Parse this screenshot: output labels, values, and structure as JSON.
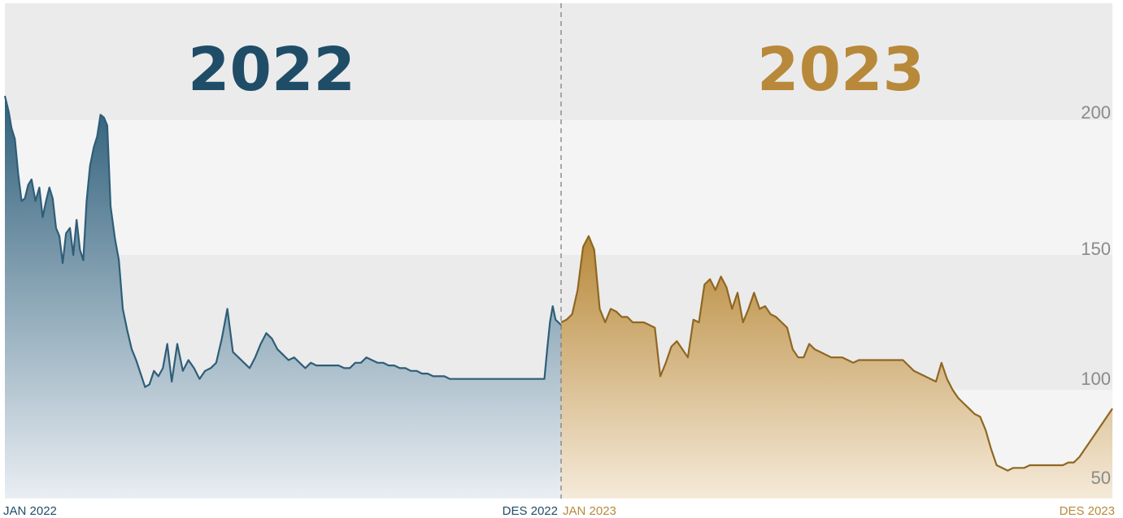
{
  "chart_data": {
    "type": "area",
    "title": "",
    "xlabel": "",
    "ylabel": "",
    "ylim": [
      45,
      215
    ],
    "y_ticks": [
      "200",
      "150",
      "100",
      "50"
    ],
    "grid": "alternating horizontal bands",
    "colors": {
      "series_2022_line": "#2e5e78",
      "series_2022_fill_top": "#2f5f7a",
      "series_2022_fill_bottom": "#e9eef3",
      "series_2023_line": "#8f6722",
      "series_2023_fill_top": "#b8893a",
      "series_2023_fill_bottom": "#f5ead9",
      "title_2022": "#1f4d68",
      "title_2023": "#b8893a",
      "band_dark": "#ebebeb",
      "band_light": "#f4f4f4"
    },
    "panels": [
      {
        "year_label": "2022",
        "x_start_label": "JAN 2022",
        "x_end_label": "DES 2022",
        "series": [
          {
            "x": [
              0,
              0.007,
              0.012,
              0.018,
              0.024,
              0.03,
              0.036,
              0.042,
              0.048,
              0.055,
              0.062,
              0.068,
              0.074,
              0.08,
              0.086,
              0.092,
              0.098,
              0.104,
              0.11,
              0.117,
              0.123,
              0.129,
              0.135,
              0.141,
              0.147,
              0.153,
              0.16,
              0.166,
              0.172,
              0.178,
              0.184,
              0.19,
              0.198,
              0.205,
              0.212,
              0.22,
              0.228,
              0.236,
              0.244,
              0.252,
              0.26,
              0.268,
              0.276,
              0.284,
              0.292,
              0.3,
              0.31,
              0.32,
              0.33,
              0.34,
              0.35,
              0.36,
              0.37,
              0.38,
              0.39,
              0.4,
              0.41,
              0.42,
              0.43,
              0.44,
              0.45,
              0.46,
              0.47,
              0.48,
              0.49,
              0.5,
              0.51,
              0.52,
              0.53,
              0.54,
              0.55,
              0.56,
              0.57,
              0.58,
              0.59,
              0.6,
              0.61,
              0.62,
              0.63,
              0.64,
              0.65,
              0.66,
              0.67,
              0.68,
              0.69,
              0.7,
              0.71,
              0.72,
              0.73,
              0.74,
              0.75,
              0.76,
              0.77,
              0.78,
              0.79,
              0.8,
              0.81,
              0.82,
              0.83,
              0.84,
              0.85,
              0.86,
              0.87,
              0.88,
              0.89,
              0.9,
              0.91,
              0.92,
              0.93,
              0.94,
              0.95,
              0.96,
              0.97,
              0.975,
              0.98,
              0.985,
              0.99,
              0.995,
              1
            ],
            "values": [
              209,
              203,
              197,
              193,
              180,
              170,
              171,
              176,
              178,
              170,
              175,
              164,
              170,
              175,
              171,
              160,
              157,
              147,
              158,
              160,
              150,
              163,
              152,
              148,
              170,
              183,
              190,
              194,
              202,
              201,
              198,
              168,
              156,
              148,
              130,
              122,
              115,
              111,
              106,
              101,
              102,
              107,
              105,
              108,
              117,
              103,
              117,
              107,
              111,
              108,
              104,
              107,
              108,
              110,
              119,
              130,
              114,
              112,
              110,
              108,
              112,
              117,
              121,
              119,
              115,
              113,
              111,
              112,
              110,
              108,
              110,
              109,
              109,
              109,
              109,
              109,
              108,
              108,
              110,
              110,
              112,
              111,
              110,
              110,
              109,
              109,
              108,
              108,
              107,
              107,
              106,
              106,
              105,
              105,
              105,
              104,
              104,
              104,
              104,
              104,
              104,
              104,
              104,
              104,
              104,
              104,
              104,
              104,
              104,
              104,
              104,
              104,
              104,
              115,
              125,
              131,
              126,
              125,
              124
            ]
          }
        ]
      },
      {
        "year_label": "2023",
        "x_start_label": "JAN 2023",
        "x_end_label": "DES 2023",
        "series": [
          {
            "x": [
              0,
              0.01,
              0.02,
              0.03,
              0.04,
              0.05,
              0.06,
              0.07,
              0.08,
              0.09,
              0.1,
              0.11,
              0.12,
              0.13,
              0.14,
              0.15,
              0.16,
              0.17,
              0.18,
              0.19,
              0.2,
              0.21,
              0.22,
              0.23,
              0.24,
              0.25,
              0.26,
              0.27,
              0.28,
              0.29,
              0.3,
              0.31,
              0.32,
              0.33,
              0.34,
              0.35,
              0.36,
              0.37,
              0.38,
              0.39,
              0.4,
              0.41,
              0.42,
              0.43,
              0.44,
              0.45,
              0.46,
              0.47,
              0.48,
              0.49,
              0.5,
              0.51,
              0.52,
              0.53,
              0.54,
              0.55,
              0.56,
              0.57,
              0.58,
              0.59,
              0.6,
              0.61,
              0.62,
              0.63,
              0.64,
              0.65,
              0.66,
              0.67,
              0.68,
              0.69,
              0.7,
              0.71,
              0.72,
              0.73,
              0.74,
              0.75,
              0.76,
              0.77,
              0.78,
              0.79,
              0.8,
              0.81,
              0.82,
              0.83,
              0.84,
              0.85,
              0.86,
              0.87,
              0.88,
              0.89,
              0.9,
              0.91,
              0.92,
              0.93,
              0.94,
              0.95,
              0.96,
              0.97,
              0.98,
              0.99,
              1
            ],
            "values": [
              125,
              126,
              128,
              137,
              153,
              157,
              152,
              130,
              125,
              130,
              129,
              127,
              127,
              125,
              125,
              125,
              124,
              123,
              105,
              110,
              116,
              118,
              115,
              112,
              126,
              125,
              139,
              141,
              137,
              142,
              138,
              130,
              136,
              125,
              130,
              136,
              130,
              131,
              128,
              127,
              125,
              123,
              115,
              112,
              112,
              117,
              115,
              114,
              113,
              112,
              112,
              112,
              111,
              110,
              111,
              111,
              111,
              111,
              111,
              111,
              111,
              111,
              111,
              109,
              107,
              106,
              105,
              104,
              103,
              110,
              104,
              100,
              97,
              95,
              93,
              91,
              90,
              85,
              78,
              72,
              71,
              70,
              71,
              71,
              71,
              72,
              72,
              72,
              72,
              72,
              72,
              72,
              73,
              73,
              75,
              78,
              81,
              84,
              87,
              90,
              93
            ]
          }
        ]
      }
    ]
  }
}
